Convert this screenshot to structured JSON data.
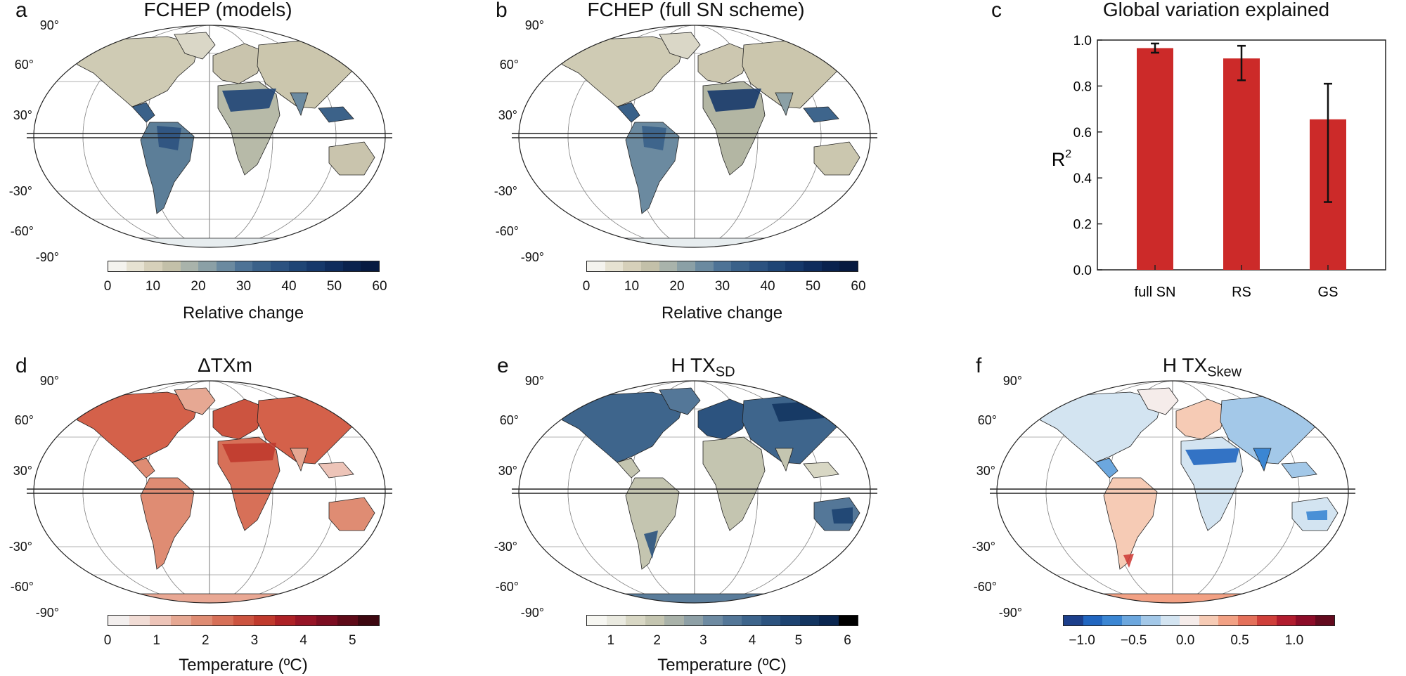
{
  "panels": {
    "a": {
      "label": "a",
      "title": "FCHEP (models)",
      "colorbar_label": "Relative change",
      "ticks": [
        "0",
        "10",
        "20",
        "30",
        "40",
        "50",
        "60"
      ],
      "colors": [
        "#f4f3ee",
        "#e6e2d2",
        "#d6d0ba",
        "#c3c0a9",
        "#a9b3ab",
        "#8ba0a6",
        "#6b8aa0",
        "#4e7396",
        "#3a6189",
        "#2c5280",
        "#1f4575",
        "#16386a",
        "#0f2c5c",
        "#0a224d",
        "#071a40"
      ]
    },
    "b": {
      "label": "b",
      "title": "FCHEP (full SN scheme)",
      "colorbar_label": "Relative change",
      "ticks": [
        "0",
        "10",
        "20",
        "30",
        "40",
        "50",
        "60"
      ],
      "colors": [
        "#f4f3ee",
        "#e6e2d2",
        "#d6d0ba",
        "#c3c0a9",
        "#a9b3ab",
        "#8ba0a6",
        "#6b8aa0",
        "#4e7396",
        "#3a6189",
        "#2c5280",
        "#1f4575",
        "#16386a",
        "#0f2c5c",
        "#0a224d",
        "#071a40"
      ]
    },
    "d": {
      "label": "d",
      "title": "ΔTXm",
      "colorbar_label": "Temperature (ºC)",
      "ticks": [
        "0",
        "1",
        "2",
        "3",
        "4",
        "5"
      ],
      "colors": [
        "#f3efee",
        "#f1dcd5",
        "#edc4b8",
        "#e6a893",
        "#df8c73",
        "#d77058",
        "#cc5440",
        "#c03a2d",
        "#ad2126",
        "#961426",
        "#7c0d21",
        "#5e0a18",
        "#3d0710"
      ]
    },
    "e": {
      "label": "e",
      "title": "H TX",
      "title_sub": "SD",
      "colorbar_label": "Temperature (ºC)",
      "ticks": [
        "1",
        "2",
        "3",
        "4",
        "5",
        "6"
      ],
      "colors": [
        "#f7f7f2",
        "#eaeae0",
        "#d8d7c4",
        "#c4c5b0",
        "#a9b2a9",
        "#8ea0a6",
        "#6e8ba2",
        "#547798",
        "#3e658c",
        "#2c537f",
        "#1d4371",
        "#133560",
        "#0a2650",
        "#000000"
      ]
    },
    "f": {
      "label": "f",
      "title": "H TX",
      "title_sub": "Skew",
      "colorbar_label": "",
      "ticks": [
        "−1.0",
        "−0.5",
        "0.0",
        "0.5",
        "1.0"
      ],
      "colors": [
        "#1c3f8c",
        "#2166c0",
        "#3b86d3",
        "#6ca7de",
        "#a3c8e8",
        "#d3e4f1",
        "#f5ecea",
        "#f6cbb5",
        "#f2a184",
        "#e4705a",
        "#cf3f3a",
        "#b11c2e",
        "#8c0c28",
        "#630a1e"
      ]
    }
  },
  "lat_labels": [
    "90°",
    "60°",
    "30°",
    "-30°",
    "-60°",
    "-90°"
  ],
  "chart_data": {
    "label": "c",
    "type": "bar",
    "title": "Global variation explained",
    "ylabel": "R",
    "ylabel_sup": "2",
    "categories": [
      "full SN",
      "RS",
      "GS"
    ],
    "values": [
      0.965,
      0.92,
      0.655
    ],
    "errors_low": [
      0.945,
      0.825,
      0.295
    ],
    "errors_high": [
      0.985,
      0.975,
      0.81
    ],
    "ylim": [
      0,
      1.0
    ],
    "yticks": [
      "0.0",
      "0.2",
      "0.4",
      "0.6",
      "0.8",
      "1.0"
    ],
    "bar_color": "#cc2a29"
  }
}
